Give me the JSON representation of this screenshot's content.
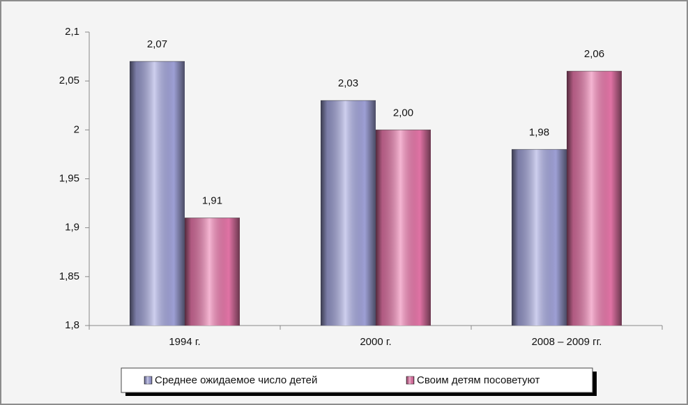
{
  "chart_data": {
    "type": "bar",
    "categories": [
      "1994 г.",
      "2000 г.",
      "2008 – 2009 гг."
    ],
    "series": [
      {
        "name": "Среднее ожидаемое число детей",
        "color": "#a6a8e0",
        "values": [
          2.07,
          2.03,
          1.98
        ],
        "value_labels": [
          "2,07",
          "2,03",
          "1,98"
        ]
      },
      {
        "name": "Своим детям посоветуют",
        "color": "#ec79ad",
        "values": [
          1.91,
          2.0,
          2.06
        ],
        "value_labels": [
          "1,91",
          "2,00",
          "2,06"
        ]
      }
    ],
    "ylim": [
      1.8,
      2.1
    ],
    "yticks": [
      {
        "value": 1.8,
        "label": "1,8"
      },
      {
        "value": 1.85,
        "label": "1,85"
      },
      {
        "value": 1.9,
        "label": "1,9"
      },
      {
        "value": 1.95,
        "label": "1,95"
      },
      2,
      {
        "value": 2.05,
        "label": "2,05"
      },
      {
        "value": 2.1,
        "label": "2,1"
      }
    ],
    "legend": "bottom"
  }
}
